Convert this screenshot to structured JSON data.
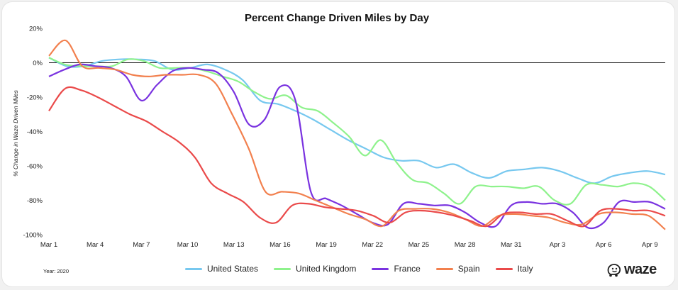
{
  "chart_data": {
    "type": "line",
    "title": "Percent Change Driven Miles by Day",
    "xlabel": "",
    "ylabel": "% Change in Waze Driven Miles",
    "note": "Year: 2020",
    "ylim": [
      -100,
      20
    ],
    "y_ticks": [
      20,
      0,
      -20,
      -40,
      -60,
      -80,
      -100
    ],
    "y_tick_labels": [
      "20%",
      "0%",
      "-20%",
      "-40%",
      "-60%",
      "-80%",
      "-100%"
    ],
    "x_tick_labels": [
      "Mar 1",
      "Mar 4",
      "Mar 7",
      "Mar 10",
      "Mar 13",
      "Mar 16",
      "Mar 19",
      "Mar 22",
      "Mar 25",
      "Mar 28",
      "Mar 31",
      "Apr 3",
      "Apr 6",
      "Apr 9"
    ],
    "x_tick_days": [
      0,
      3,
      6,
      9,
      12,
      15,
      18,
      21,
      24,
      27,
      30,
      33,
      36,
      39
    ],
    "x_range": [
      0,
      40
    ],
    "grid": "zero-line",
    "legend_position": "bottom",
    "series": [
      {
        "name": "United States",
        "color": "#77c8ef",
        "values": [
          3,
          -2,
          -2,
          1,
          2,
          2,
          1,
          -4,
          -3,
          -1,
          -4,
          -10,
          -22,
          -24,
          -28,
          -33,
          -39,
          -45,
          -50,
          -55,
          -57,
          -57,
          -61,
          -59,
          -64,
          -67,
          -63,
          -62,
          -61,
          -63,
          -67,
          -70,
          -66,
          -64,
          -63,
          -65
        ]
      },
      {
        "name": "United Kingdom",
        "color": "#8ef28c",
        "values": [
          3,
          -1,
          -2,
          -2,
          -2,
          2,
          1,
          -3,
          -3,
          -3,
          -5,
          -8,
          -11,
          -17,
          -21,
          -19,
          -26,
          -28,
          -35,
          -43,
          -54,
          -45,
          -58,
          -68,
          -70,
          -76,
          -82,
          -72,
          -72,
          -72,
          -73,
          -72,
          -80,
          -82,
          -71,
          -71,
          -72,
          -70,
          -72,
          -80
        ]
      },
      {
        "name": "France",
        "color": "#7a33e0",
        "values": [
          -8,
          -4,
          -1,
          -2,
          -3,
          -8,
          -22,
          -13,
          -5,
          -3,
          -4,
          -6,
          -17,
          -36,
          -33,
          -14,
          -22,
          -75,
          -79,
          -83,
          -88,
          -93,
          -94,
          -82,
          -82,
          -83,
          -83,
          -87,
          -93,
          -95,
          -83,
          -81,
          -82,
          -82,
          -87,
          -96,
          -93,
          -81,
          -81,
          -81,
          -85
        ]
      },
      {
        "name": "Spain",
        "color": "#f2804e",
        "values": [
          4,
          13,
          -2,
          -3,
          -4,
          -7,
          -8,
          -7,
          -7,
          -7,
          -12,
          -30,
          -50,
          -75,
          -75,
          -76,
          -80,
          -84,
          -88,
          -91,
          -95,
          -86,
          -85,
          -85,
          -87,
          -91,
          -95,
          -89,
          -88,
          -89,
          -90,
          -93,
          -94,
          -88,
          -87,
          -88,
          -89,
          -97
        ]
      },
      {
        "name": "Italy",
        "color": "#ea4a4a",
        "values": [
          -28,
          -15,
          -16,
          -20,
          -25,
          -30,
          -34,
          -40,
          -46,
          -55,
          -70,
          -76,
          -81,
          -90,
          -93,
          -83,
          -82,
          -84,
          -85,
          -86,
          -89,
          -93,
          -87,
          -86,
          -87,
          -89,
          -92,
          -95,
          -88,
          -87,
          -88,
          -88,
          -92,
          -95,
          -86,
          -85,
          -86,
          -86,
          -89
        ]
      }
    ]
  },
  "brand": {
    "logo_text": "waze",
    "logo_icon": "waze-smiley-icon"
  }
}
